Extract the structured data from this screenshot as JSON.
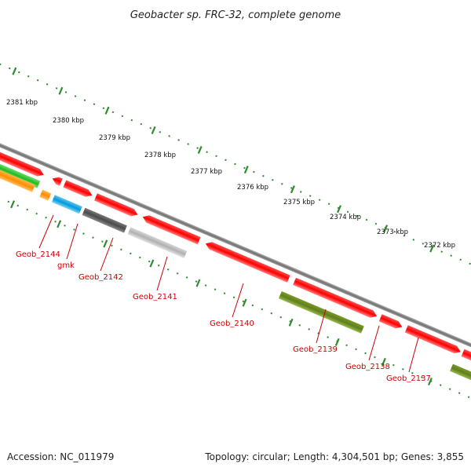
{
  "title": "Geobacter sp. FRC-32, complete genome",
  "accession": "Accession: NC_011979",
  "summary": "Topology: circular; Length: 4,304,501 bp; Genes: 3,855",
  "colors": {
    "backbone": "#8a8a8a",
    "tick": "#2e8b2e",
    "label": "#cc0000",
    "gene_red": "#ff1a1a",
    "gene_olive": "#6b8e23",
    "gene_grey_dark": "#5a5a5a",
    "gene_grey_light": "#bdbdbd",
    "gene_cyan": "#1aa7e0",
    "gene_orange": "#ff9900",
    "gene_green": "#33cc33"
  },
  "kbp_labels": [
    "2381 kbp",
    "2380 kbp",
    "2379 kbp",
    "2378 kbp",
    "2377 kbp",
    "2376 kbp",
    "2375 kbp",
    "2374 kbp",
    "2373 kbp",
    "2372 kbp"
  ],
  "gene_labels": [
    "Geob_2144",
    "gmk",
    "Geob_2142",
    "Geob_2141",
    "Geob_2140",
    "Geob_2139",
    "Geob_2138",
    "Geob_2137"
  ]
}
